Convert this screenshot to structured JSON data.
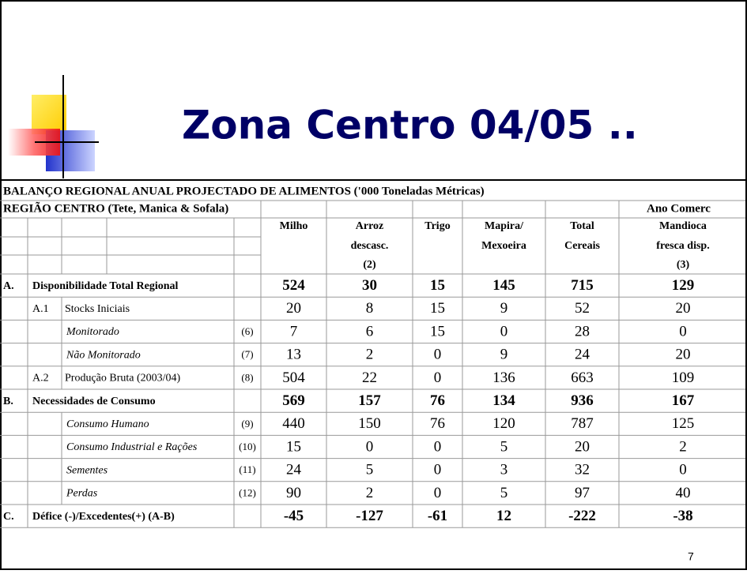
{
  "title": "Zona Centro 04/05 ..",
  "table": {
    "heading": "BALANÇO REGIONAL ANUAL PROJECTADO DE ALIMENTOS ('000 Toneladas Métricas)",
    "subheading": "REGIÃO CENTRO (Tete, Manica & Sofala)",
    "period_label": "Ano Comerc",
    "columns": [
      [
        "Milho"
      ],
      [
        "Arroz",
        "descasc.",
        "(2)"
      ],
      [
        "Trigo"
      ],
      [
        "Mapira/",
        "Mexoeira"
      ],
      [
        "Total",
        "Cereais"
      ],
      [
        "Mandioca",
        "fresca disp.",
        "(3)"
      ]
    ],
    "rows": [
      {
        "code": "A.",
        "label": "Disponibilidade Total Regional",
        "values": [
          524,
          30,
          15,
          145,
          715,
          129
        ]
      },
      {
        "subcode": "A.1",
        "label": "Stocks Iniciais",
        "values": [
          20,
          8,
          15,
          9,
          52,
          20
        ]
      },
      {
        "label": "Monitorado",
        "note": "(6)",
        "values": [
          7,
          6,
          15,
          0,
          28,
          0
        ]
      },
      {
        "label": "Não Monitorado",
        "note": "(7)",
        "values": [
          13,
          2,
          0,
          9,
          24,
          20
        ]
      },
      {
        "subcode": "A.2",
        "label": "Produção Bruta (2003/04)",
        "note": "(8)",
        "values": [
          504,
          22,
          0,
          136,
          663,
          109
        ]
      },
      {
        "code": "B.",
        "label": "Necessidades de Consumo",
        "values": [
          569,
          157,
          76,
          134,
          936,
          167
        ]
      },
      {
        "label": "Consumo Humano",
        "note": "(9)",
        "values": [
          440,
          150,
          76,
          120,
          787,
          125
        ]
      },
      {
        "label": "Consumo Industrial e Rações",
        "note": "(10)",
        "values": [
          15,
          0,
          0,
          5,
          20,
          2
        ]
      },
      {
        "label": "Sementes",
        "note": "(11)",
        "values": [
          24,
          5,
          0,
          3,
          32,
          0
        ]
      },
      {
        "label": "Perdas",
        "note": "(12)",
        "values": [
          90,
          2,
          0,
          5,
          97,
          40
        ]
      },
      {
        "code": "C.",
        "label": "Défice (-)/Excedentes(+) (A-B)",
        "values": [
          -45,
          -127,
          -61,
          12,
          -222,
          -38
        ]
      }
    ]
  },
  "page_number": 7
}
